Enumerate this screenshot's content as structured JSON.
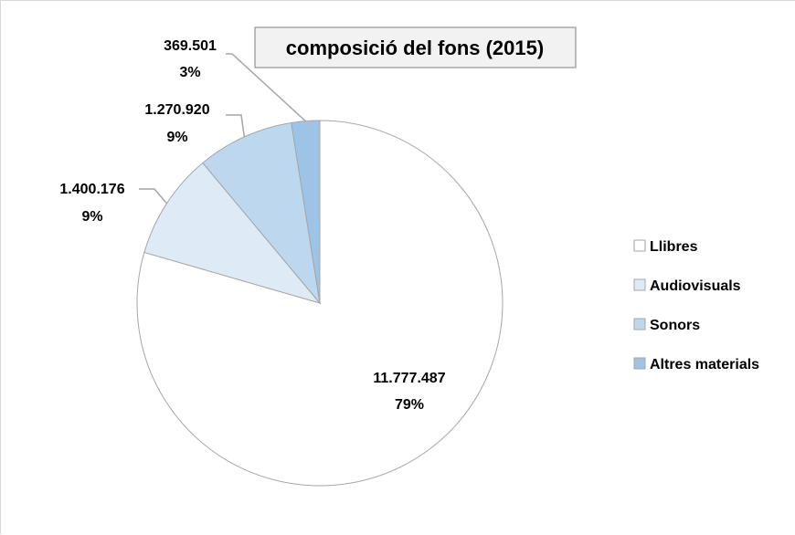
{
  "chart_data": {
    "type": "pie",
    "title": "composició  del fons (2015)",
    "legend_position": "right",
    "slices": [
      {
        "name": "Llibres",
        "value": 11777487,
        "value_label": "11.777.487",
        "percent_label": "79%",
        "color": "#ffffff"
      },
      {
        "name": "Audiovisuals",
        "value": 1400176,
        "value_label": "1.400.176",
        "percent_label": "9%",
        "color": "#deeaf6"
      },
      {
        "name": "Sonors",
        "value": 1270920,
        "value_label": "1.270.920",
        "percent_label": "9%",
        "color": "#bdd7ee"
      },
      {
        "name": "Altres materials",
        "value": 369501,
        "value_label": "369.501",
        "percent_label": "3%",
        "color": "#9dc3e6"
      }
    ]
  }
}
